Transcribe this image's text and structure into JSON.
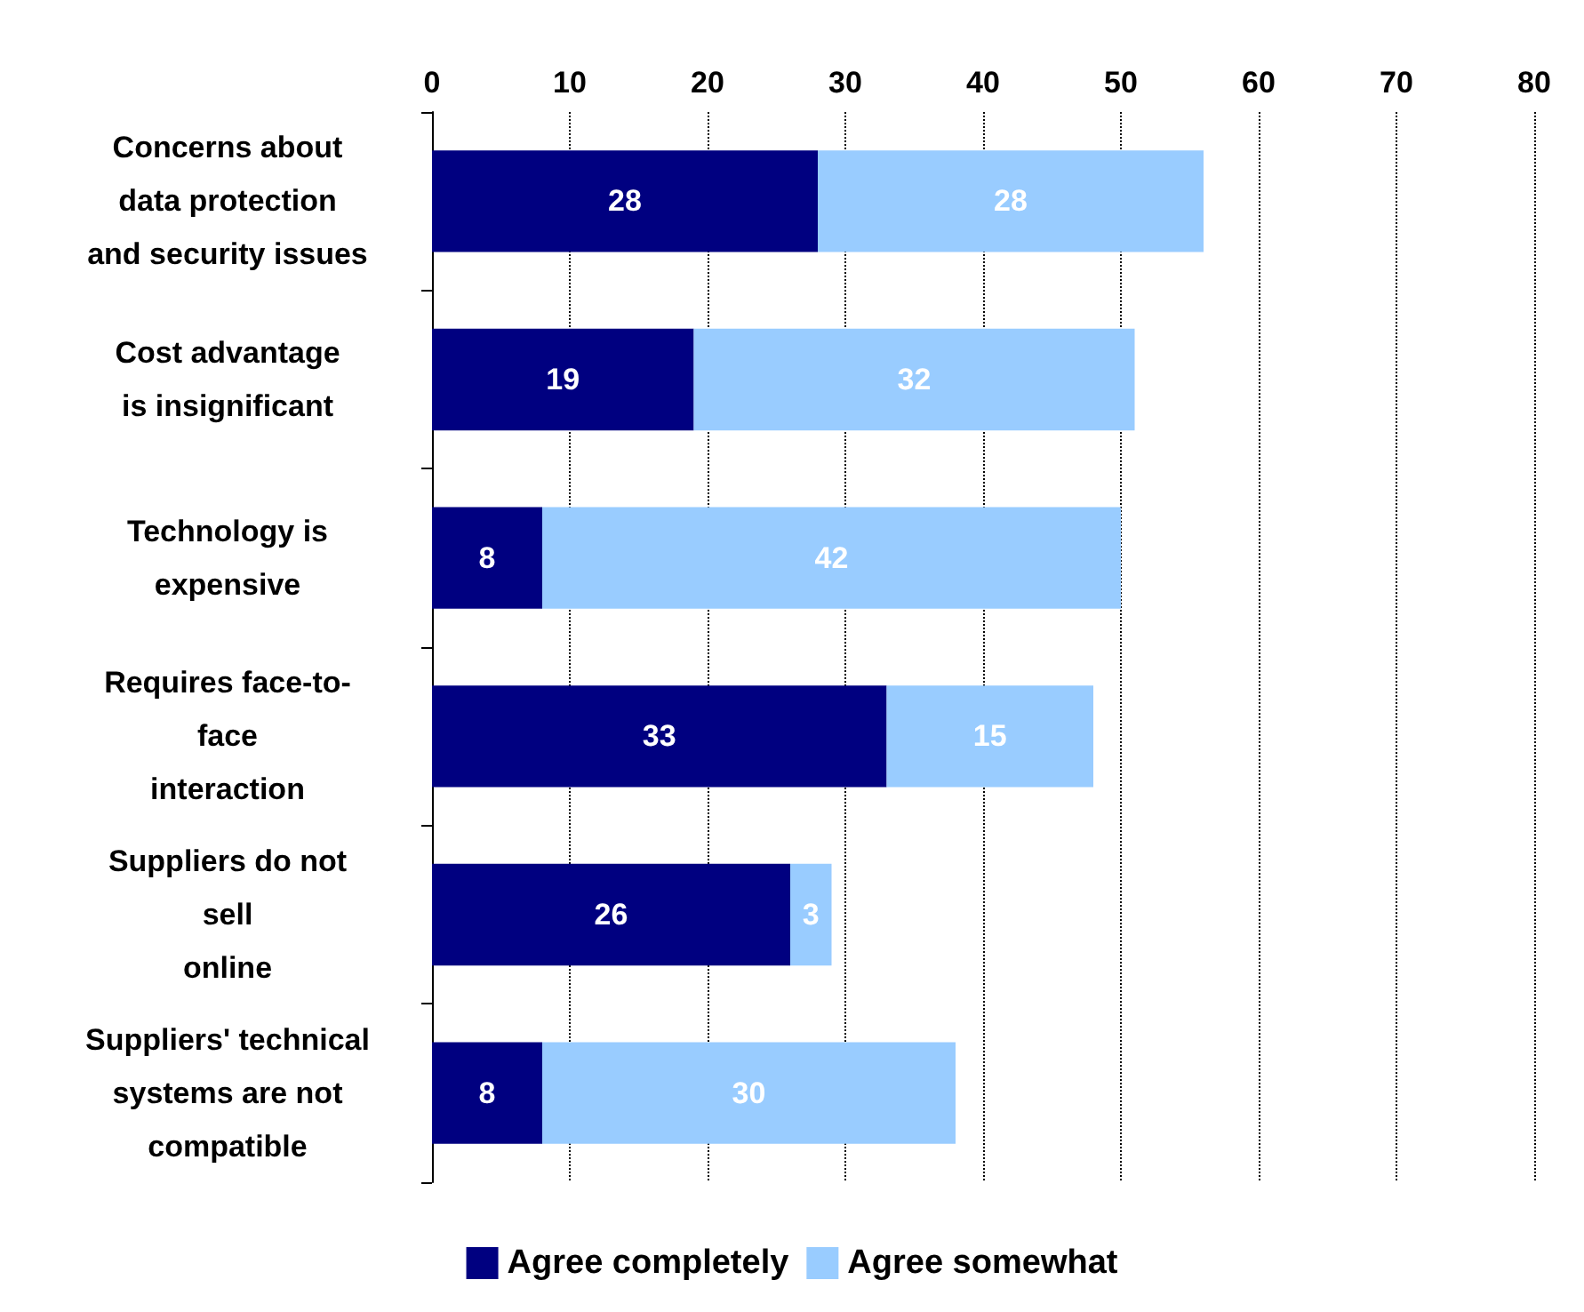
{
  "chart_data": {
    "type": "bar",
    "orientation": "horizontal",
    "stacked": true,
    "categories": [
      "Concerns about\ndata protection\nand security issues",
      "Cost advantage\nis insignificant",
      "Technology is\nexpensive",
      "Requires face-to-\nface\ninteraction",
      "Suppliers do not\nsell\nonline",
      "Suppliers' technical\nsystems are not\ncompatible"
    ],
    "series": [
      {
        "name": "Agree completely",
        "color": "#000080",
        "values": [
          28,
          19,
          8,
          33,
          26,
          8
        ]
      },
      {
        "name": "Agree somewhat",
        "color": "#99ccff",
        "values": [
          28,
          32,
          42,
          15,
          3,
          30
        ]
      }
    ],
    "xlim": [
      0,
      80
    ],
    "xticks": [
      0,
      10,
      20,
      30,
      40,
      50,
      60,
      70,
      80
    ],
    "grid": "x",
    "legend": "bottom",
    "data_labels": true
  }
}
